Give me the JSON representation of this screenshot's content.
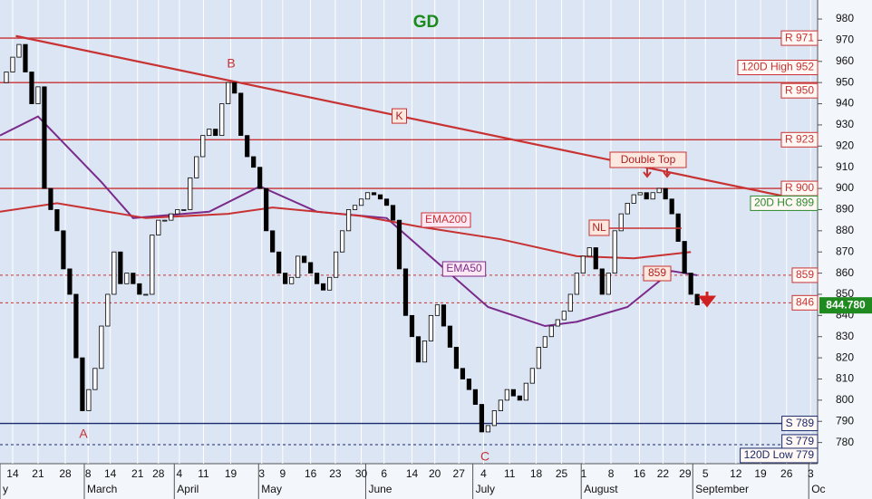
{
  "chart_data": {
    "type": "candlestick",
    "title": "GD",
    "xlim": [
      0,
      129
    ],
    "ylim": [
      770,
      989
    ],
    "yticks": [
      780,
      790,
      800,
      810,
      820,
      830,
      840,
      850,
      860,
      870,
      880,
      890,
      900,
      910,
      920,
      930,
      940,
      950,
      960,
      970,
      980
    ],
    "xticks": [
      {
        "value": 2,
        "label": "14"
      },
      {
        "value": 6,
        "label": "21"
      },
      {
        "value": 10.3,
        "label": "28"
      },
      {
        "value": 13.9,
        "label": "8"
      },
      {
        "value": 17.4,
        "label": "14"
      },
      {
        "value": 21.7,
        "label": "21"
      },
      {
        "value": 25,
        "label": "28"
      },
      {
        "value": 28.3,
        "label": "4"
      },
      {
        "value": 32.1,
        "label": "11"
      },
      {
        "value": 36.4,
        "label": "19"
      },
      {
        "value": 41.3,
        "label": "3"
      },
      {
        "value": 44.6,
        "label": "9"
      },
      {
        "value": 49,
        "label": "16"
      },
      {
        "value": 52.9,
        "label": "23"
      },
      {
        "value": 57,
        "label": "30"
      },
      {
        "value": 60.6,
        "label": "6"
      },
      {
        "value": 65,
        "label": "14"
      },
      {
        "value": 68.6,
        "label": "20"
      },
      {
        "value": 72.4,
        "label": "27"
      },
      {
        "value": 76.3,
        "label": "4"
      },
      {
        "value": 80.4,
        "label": "11"
      },
      {
        "value": 84.6,
        "label": "18"
      },
      {
        "value": 88.6,
        "label": "25"
      },
      {
        "value": 92.1,
        "label": "1"
      },
      {
        "value": 96.4,
        "label": "8"
      },
      {
        "value": 100.9,
        "label": "16"
      },
      {
        "value": 104.6,
        "label": "22"
      },
      {
        "value": 108.1,
        "label": "29"
      },
      {
        "value": 111.3,
        "label": "5"
      },
      {
        "value": 116.1,
        "label": "12"
      },
      {
        "value": 120,
        "label": "19"
      },
      {
        "value": 124.1,
        "label": "26"
      },
      {
        "value": 127.9,
        "label": "3"
      }
    ],
    "months": [
      {
        "value": 0,
        "label": "y"
      },
      {
        "value": 13.3,
        "label": "March"
      },
      {
        "value": 27.5,
        "label": "April"
      },
      {
        "value": 40.8,
        "label": "May"
      },
      {
        "value": 57.7,
        "label": "June"
      },
      {
        "value": 74.6,
        "label": "July"
      },
      {
        "value": 91.7,
        "label": "August"
      },
      {
        "value": 109.3,
        "label": "September"
      },
      {
        "value": 127.6,
        "label": "Oc"
      }
    ],
    "candles": {
      "x": [
        1,
        2,
        3,
        4,
        5,
        6,
        7,
        8,
        9,
        10,
        11,
        12,
        13,
        14,
        15,
        16,
        17,
        18,
        19,
        20,
        21,
        22,
        23,
        24,
        25,
        26,
        27,
        28,
        29,
        30,
        31,
        32,
        33,
        34,
        35,
        36,
        37,
        38,
        39,
        40,
        41,
        42,
        43,
        44,
        45,
        46,
        47,
        48,
        49,
        50,
        51,
        52,
        53,
        54,
        55,
        56,
        57,
        58,
        59,
        60,
        61,
        62,
        63,
        64,
        65,
        66,
        67,
        68,
        69,
        70,
        71,
        72,
        73,
        74,
        75,
        76,
        77,
        78,
        79,
        80,
        81,
        82,
        83,
        84,
        85,
        86,
        87,
        88,
        89,
        90,
        91,
        92,
        93,
        94,
        95,
        96,
        97,
        98,
        99,
        100,
        101,
        102,
        103,
        104,
        105,
        106,
        107,
        108,
        109,
        110
      ],
      "open": [
        950,
        955,
        962,
        968,
        955,
        940,
        948,
        900,
        890,
        880,
        862,
        850,
        820,
        795,
        805,
        815,
        835,
        850,
        870,
        855,
        860,
        855,
        850,
        850,
        878,
        885,
        885,
        888,
        890,
        890,
        905,
        915,
        925,
        928,
        925,
        940,
        950,
        945,
        925,
        915,
        910,
        900,
        880,
        870,
        860,
        855,
        858,
        868,
        865,
        860,
        855,
        852,
        858,
        870,
        880,
        890,
        892,
        895,
        898,
        897,
        895,
        892,
        885,
        862,
        840,
        830,
        818,
        828,
        840,
        845,
        835,
        825,
        815,
        810,
        805,
        798,
        785,
        788,
        795,
        800,
        805,
        802,
        800,
        808,
        815,
        825,
        830,
        835,
        838,
        842,
        850,
        860,
        868,
        872,
        862,
        850,
        860,
        880,
        888,
        893,
        897,
        898,
        895,
        898,
        900,
        895,
        888,
        875,
        860,
        850
      ],
      "close": [
        955,
        962,
        968,
        955,
        940,
        948,
        900,
        890,
        880,
        862,
        850,
        820,
        795,
        805,
        815,
        835,
        850,
        870,
        855,
        860,
        855,
        850,
        850,
        878,
        885,
        885,
        888,
        890,
        890,
        905,
        915,
        925,
        928,
        925,
        940,
        950,
        945,
        925,
        915,
        910,
        900,
        880,
        870,
        860,
        855,
        858,
        868,
        865,
        860,
        855,
        852,
        858,
        870,
        880,
        890,
        892,
        895,
        898,
        897,
        895,
        892,
        885,
        862,
        840,
        830,
        818,
        828,
        840,
        845,
        835,
        825,
        815,
        810,
        805,
        798,
        785,
        788,
        795,
        800,
        805,
        802,
        800,
        808,
        815,
        825,
        830,
        835,
        838,
        842,
        850,
        860,
        868,
        872,
        862,
        850,
        860,
        880,
        888,
        893,
        897,
        898,
        895,
        898,
        900,
        895,
        888,
        875,
        860,
        850,
        845
      ]
    },
    "series": [
      {
        "name": "EMA50",
        "color": "#7a2a8a",
        "x": [
          0,
          6,
          16,
          21,
          33,
          41,
          50,
          61,
          69,
          77,
          86,
          91,
          99,
          106,
          110
        ],
        "values": [
          925,
          934,
          903,
          886,
          889,
          901,
          889,
          886,
          865,
          844,
          835,
          837,
          844,
          861,
          859
        ]
      },
      {
        "name": "EMA200",
        "color": "#c83232",
        "x": [
          0,
          9,
          23,
          36,
          43,
          57,
          66,
          79,
          91,
          100,
          109
        ],
        "values": [
          889,
          893,
          886,
          888,
          891,
          887,
          882,
          876,
          868,
          867,
          870
        ]
      }
    ],
    "trendline": {
      "name": "K",
      "x": [
        2.5,
        129
      ],
      "values": [
        972,
        893
      ]
    },
    "levels": [
      {
        "label": "R 971",
        "value": 971,
        "color": "#c83232",
        "style": "solid"
      },
      {
        "label": "120D High 952",
        "value": 952,
        "color": "#c83232",
        "style": "none"
      },
      {
        "label": "R 950",
        "value": 950,
        "color": "#c83232",
        "style": "solid"
      },
      {
        "label": "R 923",
        "value": 923,
        "color": "#c83232",
        "style": "solid"
      },
      {
        "label": "R 900",
        "value": 900,
        "color": "#c83232",
        "style": "solid"
      },
      {
        "label": "20D HC 899",
        "value": 899,
        "color": "#2a8a2a",
        "style": "none"
      },
      {
        "label": "859",
        "value": 859,
        "color": "#c83232",
        "style": "dashed"
      },
      {
        "label": "846",
        "value": 846,
        "color": "#c83232",
        "style": "dashed"
      },
      {
        "label": "S 789",
        "value": 789,
        "color": "#1a2a6a",
        "style": "solid"
      },
      {
        "label": "S 779",
        "value": 779,
        "color": "#1a2a6a",
        "style": "dashed"
      },
      {
        "label": "120D Low 779",
        "value": 779,
        "color": "#1a2a6a",
        "style": "none"
      }
    ],
    "last_price": {
      "value": 844.78,
      "label": "844.780",
      "color": "#1f8a1f"
    },
    "annotations": [
      "A",
      "B",
      "C",
      "Double Top",
      "NL",
      "859"
    ]
  }
}
